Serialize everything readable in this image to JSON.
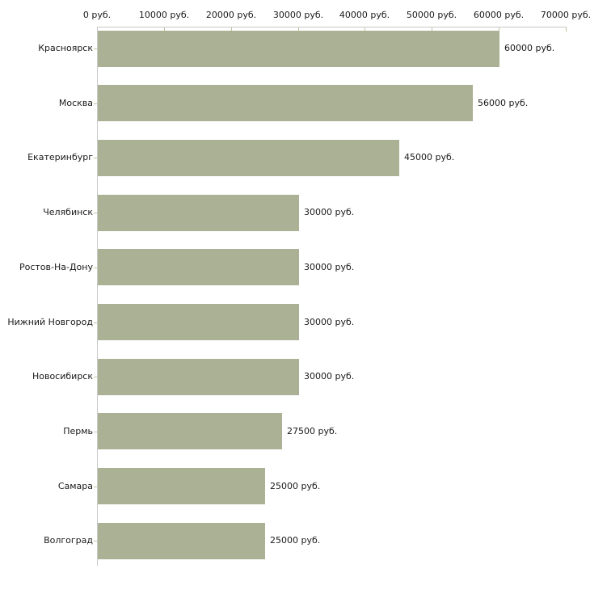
{
  "chart_data": {
    "type": "bar",
    "orientation": "horizontal",
    "title": "",
    "xlabel": "",
    "ylabel": "",
    "unit": "руб.",
    "grid": false,
    "legend": null,
    "xlim": [
      0,
      70000
    ],
    "x_ticks": [
      0,
      10000,
      20000,
      30000,
      40000,
      50000,
      60000,
      70000
    ],
    "x_tick_labels": [
      "0 руб.",
      "10000 руб.",
      "20000 руб.",
      "30000 руб.",
      "40000 руб.",
      "50000 руб.",
      "60000 руб.",
      "70000 руб."
    ],
    "categories": [
      "Красноярск",
      "Москва",
      "Екатеринбург",
      "Челябинск",
      "Ростов-На-Дону",
      "Нижний Новгород",
      "Новосибирск",
      "Пермь",
      "Самара",
      "Волгоград"
    ],
    "values": [
      60000,
      56000,
      45000,
      30000,
      30000,
      30000,
      30000,
      27500,
      25000,
      25000
    ],
    "value_labels": [
      "60000 руб.",
      "56000 руб.",
      "45000 руб.",
      "30000 руб.",
      "30000 руб.",
      "30000 руб.",
      "30000 руб.",
      "27500 руб.",
      "25000 руб.",
      "25000 руб."
    ],
    "colors": {
      "bar": "#aab195",
      "axis_line": "#c9c9c9",
      "tick_mark": "#c3c39c",
      "text": "#1a1a1a",
      "background": "#ffffff"
    }
  }
}
